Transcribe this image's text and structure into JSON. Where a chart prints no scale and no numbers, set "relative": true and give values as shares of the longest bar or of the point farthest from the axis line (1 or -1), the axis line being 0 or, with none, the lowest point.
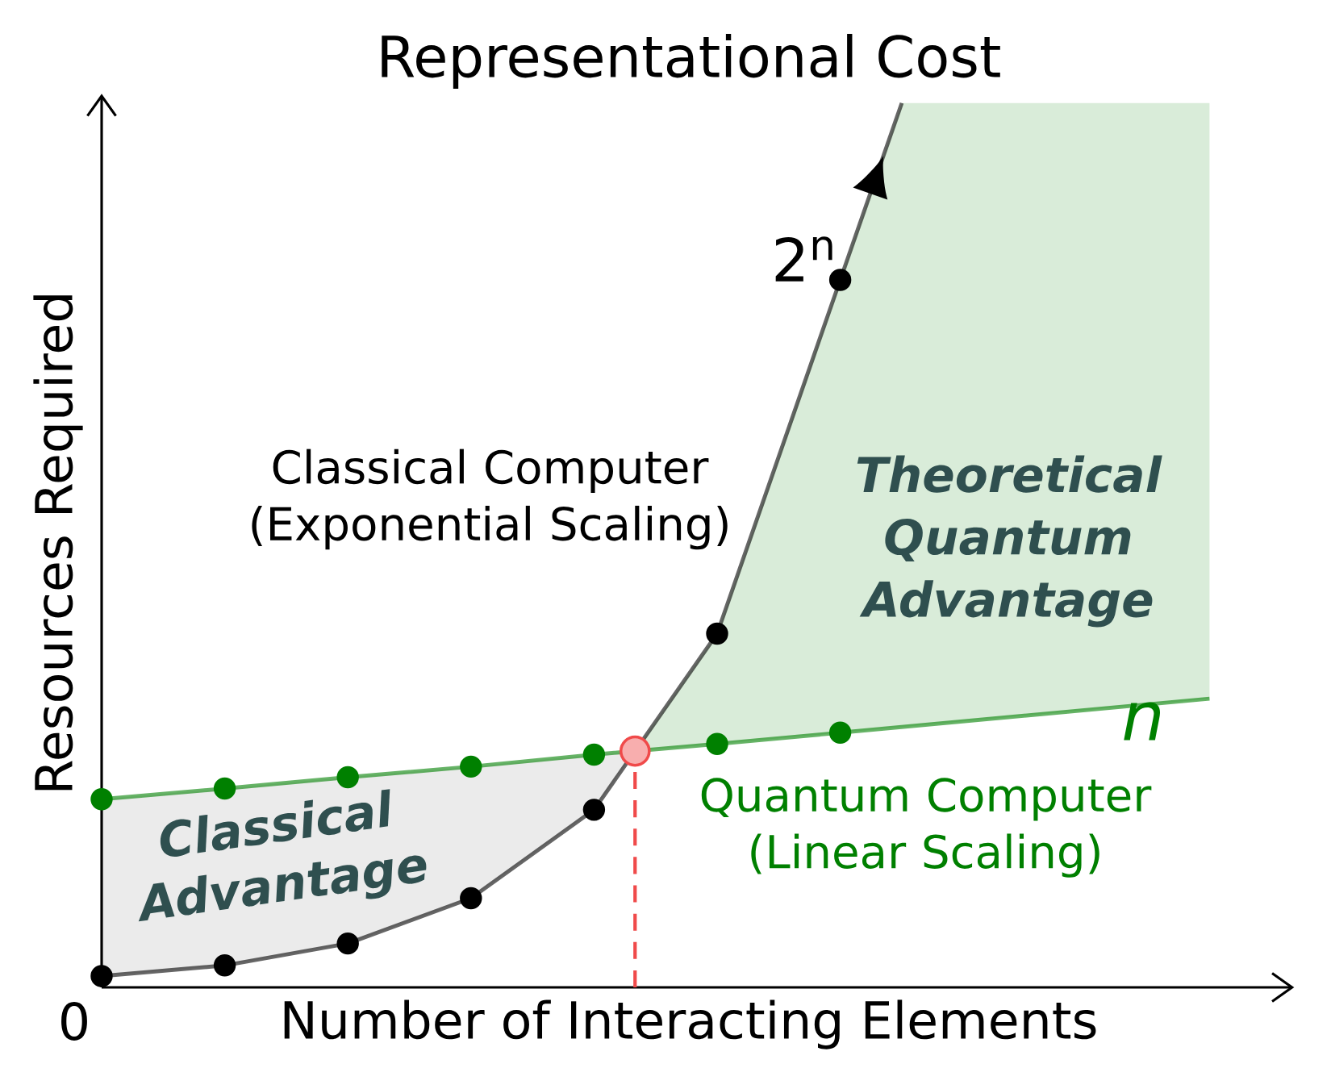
{
  "chart_data": {
    "type": "line",
    "relative": true,
    "marker": "circle",
    "title": "Representational Cost",
    "xlabel": "Number of Interacting Elements",
    "ylabel": "Resources Required",
    "categories": [
      null,
      null,
      null,
      null,
      null,
      null,
      null
    ],
    "series": [
      {
        "color": "#000000",
        "values": [
          0.016,
          0.031,
          0.062,
          0.126,
          0.251,
          0.5,
          1
        ]
      },
      {
        "color": "#008000",
        "values": [
          0.266,
          0.281,
          0.297,
          0.312,
          0.329,
          0.344,
          0.36
        ]
      }
    ],
    "annotations": [
      "Classical Computer (Exponential Scaling)",
      "Theoretical Quantum Advantage",
      "Classical Advantage",
      "Quantum Computer (Linear Scaling)",
      "2$^{n}$",
      "*n*",
      "0"
    ]
  }
}
